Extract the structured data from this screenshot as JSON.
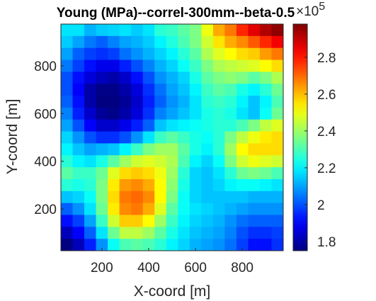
{
  "chart_data": {
    "type": "heatmap",
    "title": "Young (MPa)--correl-300mm--beta-0.5",
    "xlabel": "X-coord [m]",
    "ylabel": "Y-coord [m]",
    "xlim": [
      25,
      975
    ],
    "ylim": [
      25,
      975
    ],
    "xticks": [
      200,
      400,
      600,
      800
    ],
    "yticks": [
      200,
      400,
      600,
      800
    ],
    "cell_size": 50,
    "colormap": "jet",
    "colorbar": {
      "range": [
        175000,
        298000
      ],
      "ticks": [
        180000,
        200000,
        220000,
        240000,
        260000,
        280000
      ],
      "tick_labels": [
        "1.8",
        "2",
        "2.2",
        "2.4",
        "2.6",
        "2.8"
      ],
      "exponent_base": "×10",
      "exponent_power": "5"
    },
    "row_order": "top-to-bottom (y = 950 down to y = 50)",
    "values": [
      [
        2.18,
        2.18,
        2.12,
        2.15,
        2.16,
        2.18,
        2.15,
        2.18,
        2.26,
        2.28,
        2.32,
        2.36,
        2.5,
        2.62,
        2.68,
        2.78,
        2.86,
        2.92,
        2.96
      ],
      [
        2.15,
        2.1,
        2.05,
        2.02,
        2.06,
        2.1,
        2.12,
        2.15,
        2.2,
        2.25,
        2.3,
        2.36,
        2.46,
        2.55,
        2.62,
        2.66,
        2.72,
        2.78,
        2.84
      ],
      [
        2.1,
        2.02,
        1.98,
        1.96,
        1.98,
        2.04,
        2.08,
        2.12,
        2.16,
        2.2,
        2.26,
        2.32,
        2.42,
        2.48,
        2.52,
        2.56,
        2.58,
        2.64,
        2.68
      ],
      [
        2.05,
        1.98,
        1.92,
        1.88,
        1.88,
        1.94,
        2.0,
        2.06,
        2.12,
        2.16,
        2.22,
        2.28,
        2.36,
        2.42,
        2.44,
        2.46,
        2.48,
        2.52,
        2.56
      ],
      [
        2.0,
        1.92,
        1.86,
        1.82,
        1.8,
        1.84,
        1.92,
        2.0,
        2.08,
        2.12,
        2.16,
        2.24,
        2.32,
        2.36,
        2.38,
        2.36,
        2.32,
        2.36,
        2.42
      ],
      [
        2.0,
        1.9,
        1.8,
        1.76,
        1.76,
        1.8,
        1.86,
        1.96,
        2.04,
        2.1,
        2.14,
        2.2,
        2.28,
        2.32,
        2.3,
        2.24,
        2.2,
        2.26,
        2.34
      ],
      [
        2.02,
        1.92,
        1.8,
        1.74,
        1.74,
        1.78,
        1.84,
        1.94,
        2.02,
        2.08,
        2.12,
        2.18,
        2.26,
        2.28,
        2.26,
        2.2,
        2.14,
        2.2,
        2.3
      ],
      [
        2.06,
        1.94,
        1.84,
        1.78,
        1.76,
        1.8,
        1.86,
        1.96,
        2.06,
        2.1,
        2.14,
        2.18,
        2.24,
        2.26,
        2.24,
        2.18,
        2.14,
        2.22,
        2.34
      ],
      [
        2.1,
        2.0,
        1.9,
        1.84,
        1.84,
        1.88,
        1.94,
        2.02,
        2.14,
        2.18,
        2.2,
        2.22,
        2.24,
        2.26,
        2.26,
        2.3,
        2.36,
        2.44,
        2.48
      ],
      [
        2.16,
        2.08,
        2.0,
        1.96,
        1.96,
        2.0,
        2.08,
        2.18,
        2.28,
        2.32,
        2.28,
        2.24,
        2.22,
        2.26,
        2.36,
        2.44,
        2.5,
        2.54,
        2.56
      ],
      [
        2.2,
        2.14,
        2.1,
        2.12,
        2.14,
        2.2,
        2.28,
        2.36,
        2.4,
        2.4,
        2.32,
        2.24,
        2.2,
        2.26,
        2.4,
        2.52,
        2.56,
        2.56,
        2.56
      ],
      [
        2.26,
        2.2,
        2.18,
        2.24,
        2.32,
        2.4,
        2.46,
        2.48,
        2.46,
        2.42,
        2.3,
        2.2,
        2.16,
        2.22,
        2.36,
        2.46,
        2.5,
        2.48,
        2.46
      ],
      [
        2.32,
        2.28,
        2.28,
        2.34,
        2.48,
        2.56,
        2.58,
        2.56,
        2.5,
        2.4,
        2.26,
        2.16,
        2.14,
        2.18,
        2.26,
        2.34,
        2.36,
        2.34,
        2.3
      ],
      [
        2.26,
        2.24,
        2.26,
        2.36,
        2.54,
        2.64,
        2.66,
        2.62,
        2.52,
        2.38,
        2.24,
        2.16,
        2.14,
        2.16,
        2.2,
        2.22,
        2.22,
        2.2,
        2.18
      ],
      [
        2.14,
        2.16,
        2.22,
        2.36,
        2.56,
        2.68,
        2.7,
        2.66,
        2.52,
        2.36,
        2.22,
        2.16,
        2.14,
        2.14,
        2.14,
        2.14,
        2.12,
        2.12,
        2.12
      ],
      [
        2.02,
        2.08,
        2.18,
        2.34,
        2.54,
        2.66,
        2.68,
        2.62,
        2.48,
        2.32,
        2.22,
        2.18,
        2.16,
        2.14,
        2.12,
        2.1,
        2.08,
        2.08,
        2.08
      ],
      [
        1.92,
        1.98,
        2.1,
        2.28,
        2.46,
        2.58,
        2.58,
        2.52,
        2.4,
        2.28,
        2.2,
        2.16,
        2.14,
        2.12,
        2.08,
        2.04,
        2.02,
        2.02,
        2.02
      ],
      [
        1.82,
        1.9,
        2.02,
        2.18,
        2.34,
        2.44,
        2.44,
        2.4,
        2.32,
        2.24,
        2.18,
        2.14,
        2.12,
        2.1,
        2.06,
        2.0,
        1.96,
        1.96,
        1.98
      ],
      [
        1.74,
        1.82,
        1.94,
        2.08,
        2.22,
        2.3,
        2.32,
        2.3,
        2.26,
        2.2,
        2.16,
        2.12,
        2.1,
        2.08,
        2.04,
        1.98,
        1.92,
        1.92,
        1.96
      ]
    ],
    "value_units_note": "values are in ×10^5 MPa",
    "grid": false,
    "legend": "colorbar-right"
  }
}
